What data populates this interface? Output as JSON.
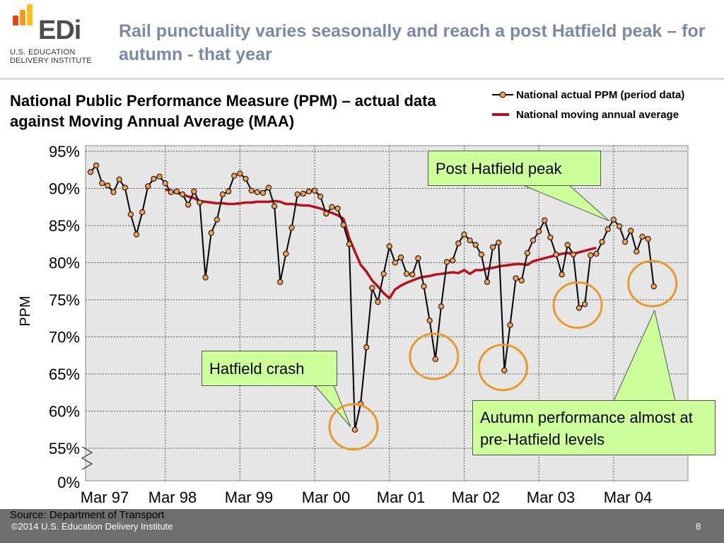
{
  "header": {
    "logo": {
      "word": "EDi",
      "line1": "U.S. EDUCATION",
      "line2": "DELIVERY INSTITUTE",
      "bar_colors": [
        "#e8431b",
        "#f39a1e",
        "#f7c21b"
      ]
    },
    "title": "Rail punctuality varies seasonally and reach a post Hatfield peak – for autumn - that year"
  },
  "subtitle": "National Public Performance Measure (PPM) – actual data against Moving Annual Average (MAA)",
  "legend": [
    {
      "label": "National actual PPM (period data)",
      "icon": "line-with-dot"
    },
    {
      "label": "National moving annual average",
      "icon": "thick-red-line"
    }
  ],
  "callouts": {
    "peak": "Post Hatfield peak",
    "crash": "Hatfield crash",
    "autumn": "Autumn performance almost at pre-Hatfield levels"
  },
  "colors": {
    "actual_line": "#000000",
    "actual_marker": "#f5a04a",
    "maa_line": "#b5121b",
    "highlight_circle": "#e69a2e",
    "plot_bg": "#e6e6e6",
    "callout_bg": "#ccff99"
  },
  "footer": {
    "source": "Source: Department of Transport",
    "copyright": "©2014 U.S. Education Delivery Institute",
    "page": "8"
  },
  "chart_data": {
    "type": "line",
    "ylabel": "PPM",
    "xlabel": "",
    "y_axis_break": true,
    "ylim": [
      55,
      95
    ],
    "y_ticks": [
      95,
      90,
      85,
      80,
      75,
      70,
      65,
      60,
      55,
      0
    ],
    "y_tick_labels": [
      "95%",
      "90%",
      "85%",
      "80%",
      "75%",
      "70%",
      "65%",
      "60%",
      "55%",
      "0%"
    ],
    "x_tick_labels": [
      "Mar 97",
      "Mar 98",
      "Mar 99",
      "Mar 00",
      "Mar 01",
      "Mar 02",
      "Mar 03",
      "Mar 04"
    ],
    "periods_per_year": 13,
    "grid": true,
    "legend_position": "top-right",
    "series": [
      {
        "name": "National actual PPM (period data)",
        "values": [
          92.2,
          93.1,
          90.7,
          90.4,
          89.5,
          91.2,
          90.1,
          86.5,
          83.8,
          86.8,
          90.3,
          91.3,
          91.6,
          90.7,
          89.5,
          89.6,
          89.2,
          87.8,
          89.6,
          88.1,
          78.0,
          84.0,
          85.8,
          89.2,
          89.6,
          91.7,
          92.0,
          91.3,
          89.7,
          89.5,
          89.4,
          90.1,
          87.6,
          77.4,
          81.2,
          84.7,
          89.2,
          89.3,
          89.6,
          89.7,
          88.9,
          86.6,
          87.5,
          87.3,
          85.1,
          82.5,
          57.5,
          61.0,
          68.6,
          76.6,
          74.7,
          78.5,
          82.2,
          80.0,
          80.7,
          78.5,
          78.4,
          80.6,
          76.8,
          72.2,
          67.0,
          74.1,
          80.1,
          80.3,
          82.6,
          83.8,
          83.0,
          82.4,
          81.1,
          77.4,
          82.1,
          82.7,
          65.5,
          71.6,
          77.9,
          77.6,
          81.3,
          83.0,
          84.2,
          85.7,
          83.4,
          81.1,
          78.4,
          82.4,
          81.1,
          73.9,
          74.4,
          81.0,
          81.2,
          82.8,
          84.5,
          85.8,
          84.9,
          82.8,
          84.3,
          81.5,
          83.5,
          83.2,
          76.8
        ]
      },
      {
        "name": "National moving annual average",
        "start_index": 13,
        "values": [
          89.9,
          89.6,
          89.4,
          89.2,
          88.9,
          88.7,
          88.3,
          88.2,
          88.1,
          88.0,
          88.0,
          87.9,
          87.9,
          88.0,
          88.1,
          88.1,
          88.2,
          88.2,
          88.2,
          88.3,
          88.2,
          87.9,
          87.9,
          87.8,
          87.7,
          87.7,
          87.5,
          87.3,
          87.0,
          86.7,
          86.4,
          85.9,
          83.3,
          81.5,
          79.7,
          78.8,
          77.6,
          76.8,
          75.9,
          75.2,
          76.4,
          76.9,
          77.3,
          77.6,
          77.9,
          78.1,
          78.2,
          78.4,
          78.5,
          78.6,
          78.7,
          78.6,
          79.0,
          78.5,
          79.0,
          79.0,
          79.2,
          79.3,
          79.5,
          79.6,
          79.7,
          79.8,
          79.8,
          79.7,
          80.2,
          80.4,
          80.6,
          80.8,
          81.0,
          81.2,
          81.3,
          81.2,
          81.4,
          81.6,
          81.8,
          82.0
        ]
      }
    ],
    "highlight_indices": [
      46,
      60,
      72,
      85,
      98
    ],
    "annotated_indices": {
      "peak": 91,
      "crash": 46,
      "autumn": 98
    }
  }
}
